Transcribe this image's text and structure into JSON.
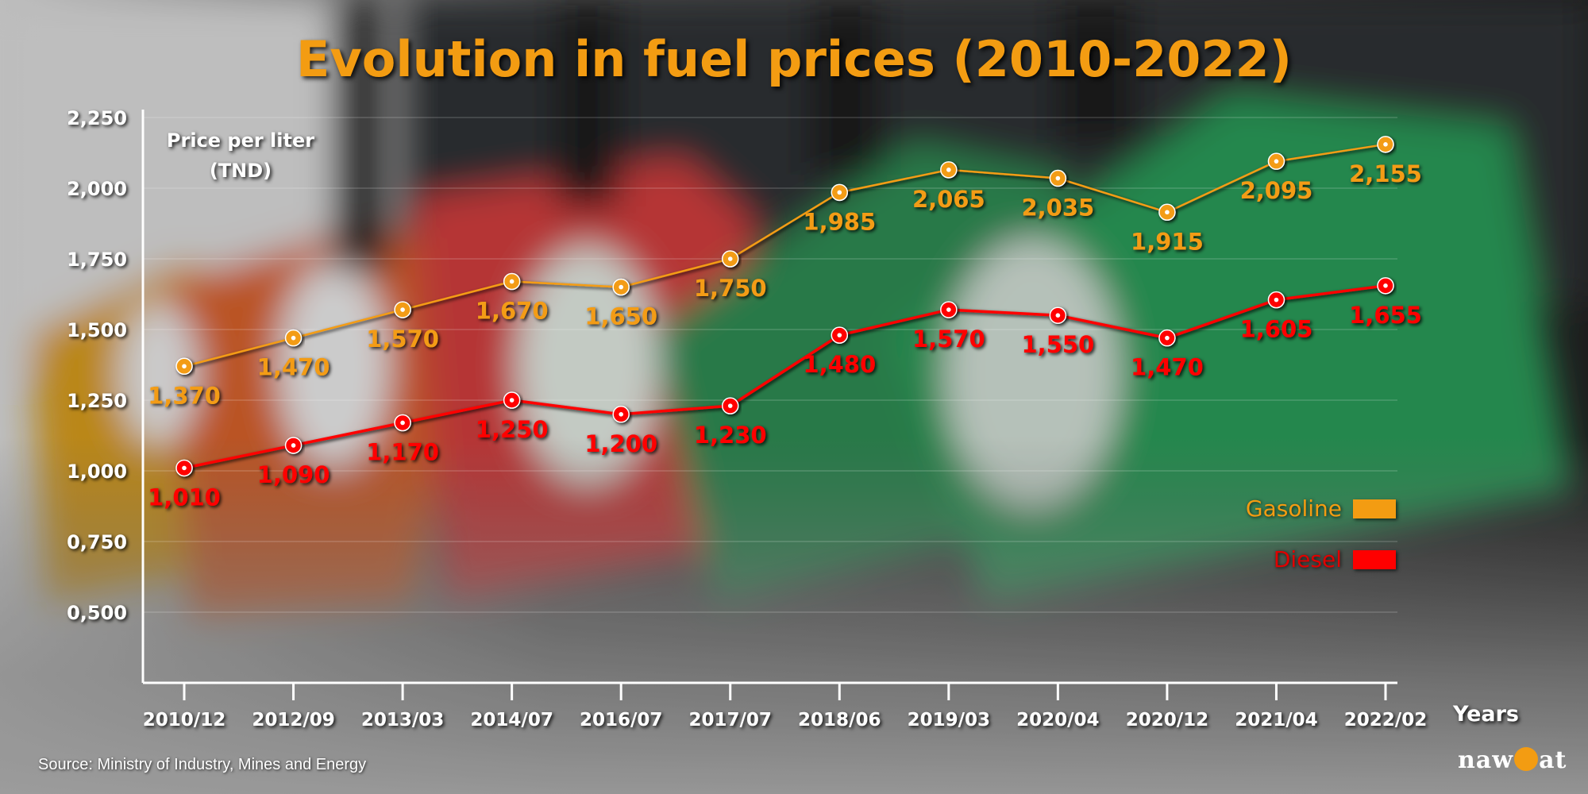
{
  "title": "Evolution in fuel prices (2010-2022)",
  "y_axis_label": [
    "Price per liter",
    "(TND)"
  ],
  "x_axis_label": "Years",
  "source": "Source: Ministry of Industry, Mines and Energy",
  "logo": "nawaat",
  "colors": {
    "gasoline": "#f39c12",
    "diesel": "#ff0000",
    "axis": "#ffffff"
  },
  "legend": {
    "gasoline": "Gasoline",
    "diesel": "Diesel"
  },
  "chart_data": {
    "type": "line",
    "title": "Evolution in fuel prices (2010-2022)",
    "xlabel": "Years",
    "ylabel": "Price per liter (TND)",
    "categories": [
      "2010/12",
      "2012/09",
      "2013/03",
      "2014/07",
      "2016/07",
      "2017/07",
      "2018/06",
      "2019/03",
      "2020/04",
      "2020/12",
      "2021/04",
      "2022/02"
    ],
    "ylim": [
      0.25,
      2.25
    ],
    "yticks": [
      "0,500",
      "0,750",
      "1,000",
      "1,250",
      "1,500",
      "1,750",
      "2,000",
      "2,250"
    ],
    "ytick_values": [
      0.5,
      0.75,
      1.0,
      1.25,
      1.5,
      1.75,
      2.0,
      2.25
    ],
    "grid": true,
    "legend_position": "right",
    "series": [
      {
        "name": "Gasoline",
        "color": "#f39c12",
        "values": [
          1.37,
          1.47,
          1.57,
          1.67,
          1.65,
          1.75,
          1.985,
          2.065,
          2.035,
          1.915,
          2.095,
          2.155
        ],
        "labels": [
          "1,370",
          "1,470",
          "1,570",
          "1,670",
          "1,650",
          "1,750",
          "1,985",
          "2,065",
          "2,035",
          "1,915",
          "2,095",
          "2,155"
        ]
      },
      {
        "name": "Diesel",
        "color": "#ff0000",
        "values": [
          1.01,
          1.09,
          1.17,
          1.25,
          1.2,
          1.23,
          1.48,
          1.57,
          1.55,
          1.47,
          1.605,
          1.655
        ],
        "labels": [
          "1,010",
          "1,090",
          "1,170",
          "1,250",
          "1,200",
          "1,230",
          "1,480",
          "1,570",
          "1,550",
          "1,470",
          "1,605",
          "1,655"
        ]
      }
    ]
  }
}
